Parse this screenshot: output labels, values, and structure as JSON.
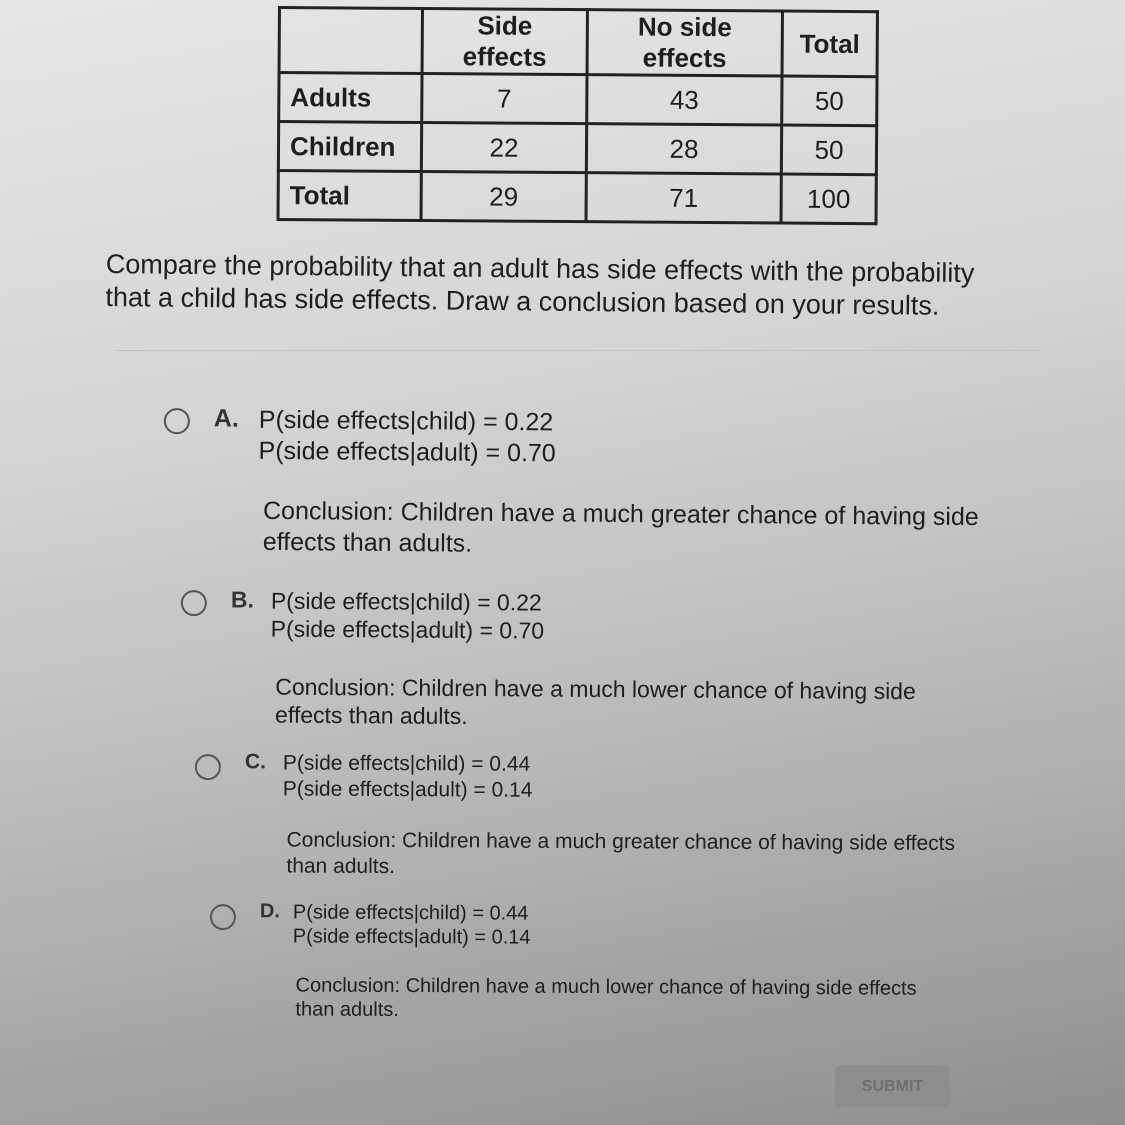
{
  "table": {
    "headers": [
      "",
      "Side effects",
      "No side effects",
      "Total"
    ],
    "rows": [
      {
        "label": "Adults",
        "values": [
          "7",
          "43",
          "50"
        ]
      },
      {
        "label": "Children",
        "values": [
          "22",
          "28",
          "50"
        ]
      },
      {
        "label": "Total",
        "values": [
          "29",
          "71",
          "100"
        ]
      }
    ]
  },
  "question": "Compare the probability that an adult has side effects with the probability that a child has side effects. Draw a conclusion based on your results.",
  "options": [
    {
      "letter": "A.",
      "line1": "P(side effects|child) = 0.22",
      "line2": "P(side effects|adult) = 0.70",
      "conclusion": "Conclusion: Children have a much greater chance of having side effects than adults."
    },
    {
      "letter": "B.",
      "line1": "P(side effects|child) = 0.22",
      "line2": "P(side effects|adult) = 0.70",
      "conclusion": "Conclusion: Children have a much lower chance of having side effects than adults."
    },
    {
      "letter": "C.",
      "line1": "P(side effects|child) = 0.44",
      "line2": "P(side effects|adult) = 0.14",
      "conclusion": "Conclusion: Children have a much greater chance of having side effects than adults."
    },
    {
      "letter": "D.",
      "line1": "P(side effects|child) = 0.44",
      "line2": "P(side effects|adult) = 0.14",
      "conclusion": "Conclusion: Children have a much lower chance of having side effects than adults."
    }
  ],
  "submit_label": "SUBMIT"
}
